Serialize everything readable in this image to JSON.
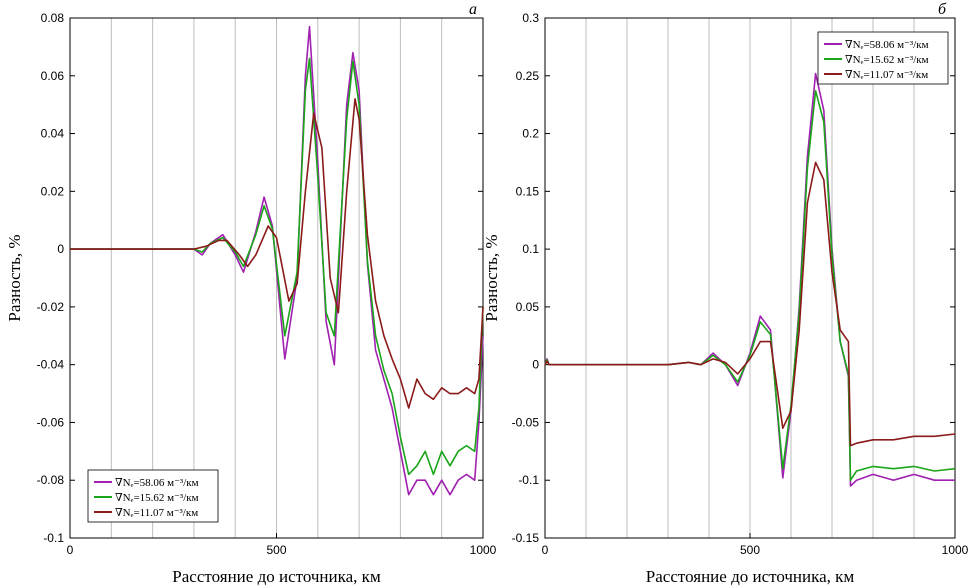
{
  "chart_data": [
    {
      "type": "line",
      "panel_label": "а",
      "xlabel": "Расстояние до источника, км",
      "ylabel": "Разность, %",
      "xlim": [
        0,
        1000
      ],
      "ylim": [
        -0.1,
        0.08
      ],
      "x_ticks": [
        "0",
        "500",
        "1000"
      ],
      "y_ticks": [
        "0.08",
        "0.06",
        "0.04",
        "0.02",
        "0",
        "-0.02",
        "-0.04",
        "-0.06",
        "-0.08",
        "-0.1"
      ],
      "grid": true,
      "legend_position": "bottom-left",
      "series": [
        {
          "name": "∇Nₑ=58.06 м⁻³/км",
          "color": "#a020b0",
          "x": [
            0,
            100,
            250,
            300,
            320,
            340,
            370,
            400,
            420,
            450,
            470,
            490,
            520,
            550,
            570,
            580,
            600,
            620,
            640,
            670,
            685,
            700,
            720,
            740,
            760,
            780,
            800,
            820,
            840,
            860,
            880,
            900,
            920,
            940,
            960,
            980,
            990,
            1000
          ],
          "y": [
            0,
            0,
            0,
            0,
            -0.002,
            0.002,
            0.005,
            -0.002,
            -0.008,
            0.006,
            0.018,
            0.008,
            -0.038,
            -0.01,
            0.06,
            0.077,
            0.03,
            -0.025,
            -0.04,
            0.05,
            0.068,
            0.055,
            -0.005,
            -0.035,
            -0.045,
            -0.055,
            -0.07,
            -0.085,
            -0.08,
            -0.08,
            -0.085,
            -0.08,
            -0.085,
            -0.08,
            -0.078,
            -0.08,
            -0.06,
            -0.03
          ]
        },
        {
          "name": "∇Nₑ=15.62 м⁻³/км",
          "color": "#1aa51a",
          "x": [
            0,
            100,
            250,
            300,
            320,
            340,
            370,
            400,
            420,
            450,
            470,
            490,
            520,
            550,
            570,
            580,
            600,
            620,
            640,
            670,
            685,
            700,
            720,
            740,
            760,
            780,
            800,
            820,
            840,
            860,
            880,
            900,
            920,
            940,
            960,
            980,
            990,
            1000
          ],
          "y": [
            0,
            0,
            0,
            0,
            -0.001,
            0.002,
            0.004,
            -0.001,
            -0.006,
            0.005,
            0.015,
            0.007,
            -0.03,
            -0.008,
            0.055,
            0.066,
            0.025,
            -0.022,
            -0.03,
            0.045,
            0.065,
            0.05,
            -0.004,
            -0.03,
            -0.042,
            -0.05,
            -0.065,
            -0.078,
            -0.075,
            -0.07,
            -0.078,
            -0.07,
            -0.075,
            -0.07,
            -0.068,
            -0.07,
            -0.055,
            -0.02
          ]
        },
        {
          "name": "∇Nₑ=11.07 м⁻³/км",
          "color": "#8b1a1a",
          "x": [
            0,
            100,
            250,
            300,
            330,
            360,
            380,
            410,
            430,
            450,
            480,
            500,
            530,
            550,
            570,
            590,
            610,
            630,
            650,
            670,
            690,
            700,
            720,
            740,
            760,
            780,
            800,
            820,
            840,
            860,
            880,
            900,
            920,
            940,
            960,
            980,
            990,
            1000
          ],
          "y": [
            0,
            0,
            0,
            0,
            0.001,
            0.003,
            0.003,
            -0.002,
            -0.006,
            -0.002,
            0.008,
            0.004,
            -0.018,
            -0.012,
            0.02,
            0.047,
            0.035,
            -0.01,
            -0.022,
            0.02,
            0.052,
            0.045,
            0.005,
            -0.018,
            -0.03,
            -0.038,
            -0.045,
            -0.055,
            -0.045,
            -0.05,
            -0.052,
            -0.048,
            -0.05,
            -0.05,
            -0.048,
            -0.05,
            -0.045,
            -0.02
          ]
        }
      ]
    },
    {
      "type": "line",
      "panel_label": "б",
      "xlabel": "Расстояние до источника, км",
      "ylabel": "Разность, %",
      "xlim": [
        0,
        1000
      ],
      "ylim": [
        -0.15,
        0.3
      ],
      "x_ticks": [
        "0",
        "500",
        "1000"
      ],
      "y_ticks": [
        "0.3",
        "0.25",
        "0.2",
        "0.15",
        "0.1",
        "0.05",
        "0",
        "-0.05",
        "-0.1",
        "-0.15"
      ],
      "grid": true,
      "legend_position": "top-right",
      "series": [
        {
          "name": "∇Nₑ=58.06 м⁻³/км",
          "color": "#a020b0",
          "x": [
            0,
            5,
            10,
            100,
            300,
            350,
            380,
            410,
            440,
            470,
            500,
            525,
            550,
            580,
            600,
            620,
            640,
            660,
            680,
            700,
            720,
            740,
            745,
            760,
            800,
            850,
            900,
            950,
            1000
          ],
          "y": [
            0,
            0.005,
            0,
            0,
            0,
            0.002,
            0,
            0.01,
            0,
            -0.018,
            0.01,
            0.042,
            0.03,
            -0.098,
            -0.04,
            0.05,
            0.18,
            0.252,
            0.22,
            0.1,
            0.02,
            -0.01,
            -0.105,
            -0.1,
            -0.095,
            -0.1,
            -0.095,
            -0.1,
            -0.1
          ]
        },
        {
          "name": "∇Nₑ=15.62 м⁻³/км",
          "color": "#1aa51a",
          "x": [
            0,
            5,
            10,
            100,
            300,
            350,
            380,
            410,
            440,
            470,
            500,
            525,
            550,
            580,
            600,
            620,
            640,
            660,
            680,
            700,
            720,
            740,
            745,
            760,
            800,
            850,
            900,
            950,
            1000
          ],
          "y": [
            0,
            0.004,
            0,
            0,
            0,
            0.002,
            0,
            0.008,
            0,
            -0.015,
            0.008,
            0.037,
            0.026,
            -0.09,
            -0.035,
            0.045,
            0.17,
            0.237,
            0.21,
            0.095,
            0.02,
            -0.008,
            -0.1,
            -0.092,
            -0.088,
            -0.09,
            -0.088,
            -0.092,
            -0.09
          ]
        },
        {
          "name": "∇Nₑ=11.07 м⁻³/км",
          "color": "#8b1a1a",
          "x": [
            0,
            5,
            10,
            100,
            300,
            350,
            380,
            410,
            440,
            470,
            500,
            525,
            550,
            580,
            600,
            620,
            640,
            660,
            680,
            700,
            720,
            740,
            745,
            760,
            800,
            850,
            900,
            950,
            1000
          ],
          "y": [
            0,
            0.003,
            0,
            0,
            0,
            0.002,
            0,
            0.005,
            0.002,
            -0.008,
            0.005,
            0.02,
            0.02,
            -0.055,
            -0.04,
            0.03,
            0.14,
            0.175,
            0.16,
            0.08,
            0.03,
            0.02,
            -0.07,
            -0.068,
            -0.065,
            -0.065,
            -0.062,
            -0.062,
            -0.06
          ]
        }
      ]
    }
  ]
}
